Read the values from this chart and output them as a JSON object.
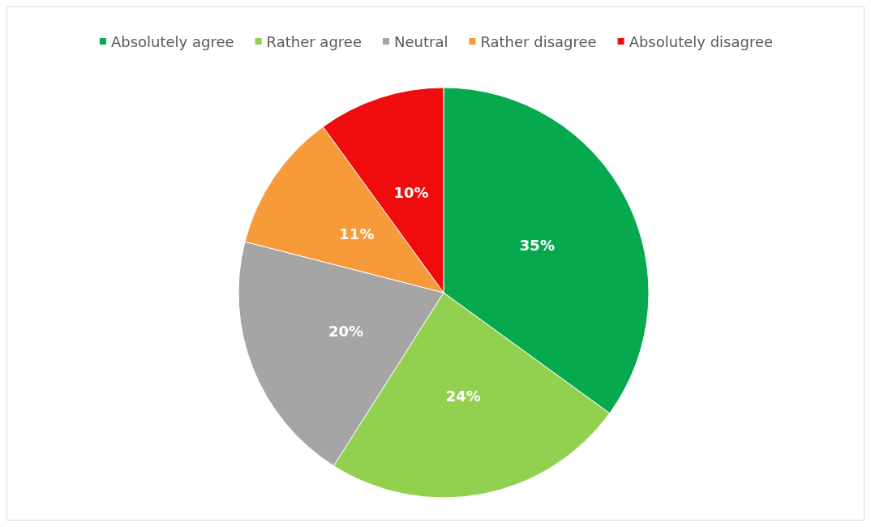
{
  "chart_data": {
    "type": "pie",
    "categories": [
      "Absolutely agree",
      "Rather agree",
      "Neutral",
      "Rather disagree",
      "Absolutely disagree"
    ],
    "values": [
      35,
      24,
      20,
      11,
      10
    ],
    "colors": [
      "#07a94f",
      "#92d050",
      "#a5a5a5",
      "#f79a3a",
      "#f00c0c"
    ],
    "value_labels": [
      "35%",
      "24%",
      "20%",
      "11%",
      "10%"
    ],
    "legend": "top"
  }
}
